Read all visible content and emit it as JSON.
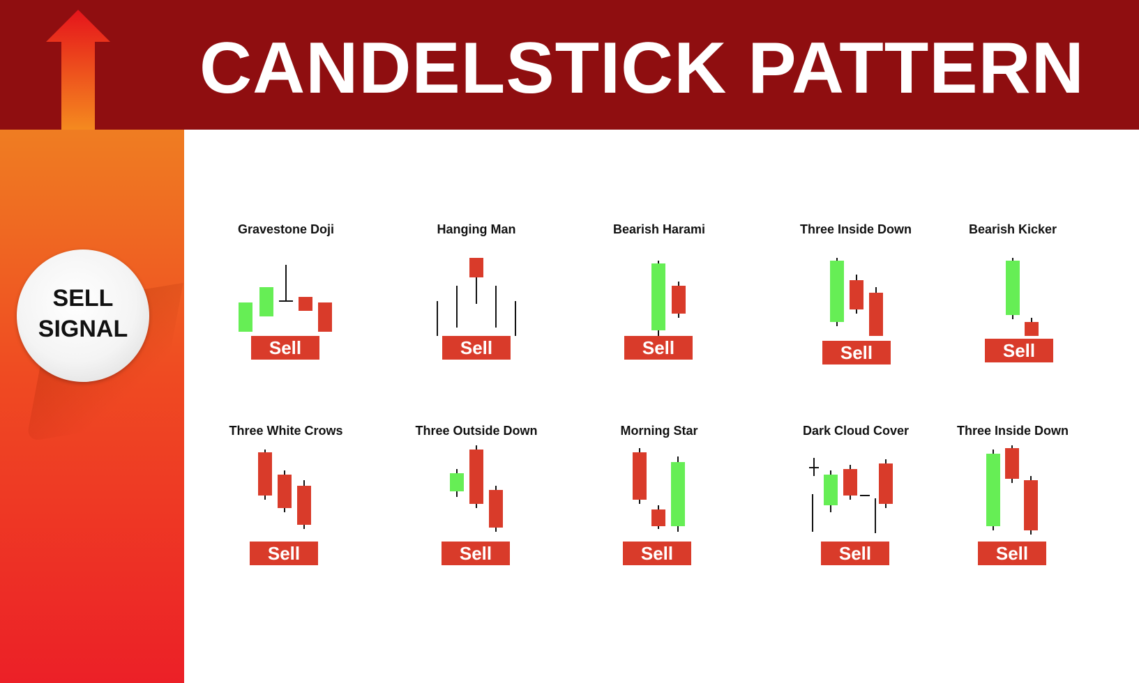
{
  "header": {
    "title": "CANDELSTICK PATTERN"
  },
  "badge": {
    "line1": "SELL",
    "line2": "SIGNAL"
  },
  "colors": {
    "header_bg": "#8f0e10",
    "bearish": "#d93b2a",
    "bullish": "#66ee55",
    "wick": "#111111",
    "button": "#d93b2a"
  },
  "icons": {
    "header_arrow": "arrow-up-icon"
  },
  "patterns": [
    {
      "name": "Gravestone Doji",
      "button": "Sell"
    },
    {
      "name": "Hanging Man",
      "button": "Sell"
    },
    {
      "name": "Bearish Harami",
      "button": "Sell"
    },
    {
      "name": "Three Inside Down",
      "button": "Sell"
    },
    {
      "name": "Bearish Kicker",
      "button": "Sell"
    },
    {
      "name": "Three White Crows",
      "button": "Sell"
    },
    {
      "name": "Three Outside Down",
      "button": "Sell"
    },
    {
      "name": "Morning Star",
      "button": "Sell"
    },
    {
      "name": "Dark Cloud Cover",
      "button": "Sell"
    },
    {
      "name": "Three Inside Down",
      "button": "Sell"
    }
  ]
}
